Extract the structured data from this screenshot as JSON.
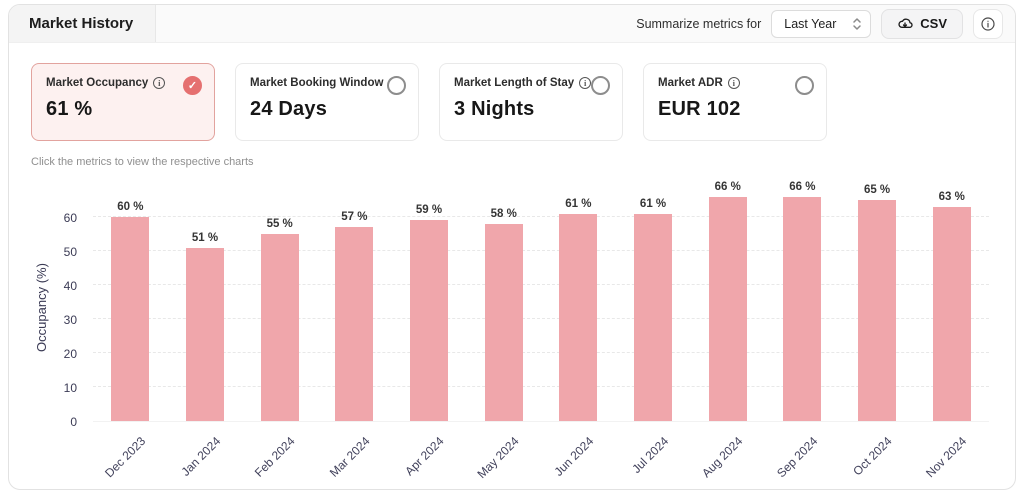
{
  "header": {
    "title": "Market History",
    "summarize_label": "Summarize metrics for",
    "period_select": {
      "value": "Last Year"
    },
    "csv_button_label": "CSV"
  },
  "metrics": [
    {
      "label": "Market Occupancy",
      "value": "61 %",
      "selected": true
    },
    {
      "label": "Market Booking Window",
      "value": "24 Days",
      "selected": false
    },
    {
      "label": "Market Length of Stay",
      "value": "3 Nights",
      "selected": false
    },
    {
      "label": "Market ADR",
      "value": "EUR 102",
      "selected": false
    }
  ],
  "hint": "Click the metrics to view the respective charts",
  "icons": {
    "info": "i",
    "check": "✓"
  },
  "colors": {
    "bar": "#f0a6ab",
    "accent": "#e57070",
    "selected_card_bg": "#fdf1f0",
    "selected_card_border": "#e2a39e",
    "axis_text": "#3b3b55"
  },
  "chart_data": {
    "type": "bar",
    "title": "",
    "xlabel": "",
    "ylabel": "Occupancy (%)",
    "categories": [
      "Dec 2023",
      "Jan 2024",
      "Feb 2024",
      "Mar 2024",
      "Apr 2024",
      "May 2024",
      "Jun 2024",
      "Jul 2024",
      "Aug 2024",
      "Sep 2024",
      "Oct 2024",
      "Nov 2024"
    ],
    "values": [
      60,
      51,
      55,
      57,
      59,
      58,
      61,
      61,
      66,
      66,
      65,
      63
    ],
    "value_suffix": " %",
    "ylim": [
      0,
      70
    ],
    "yticks": [
      0,
      10,
      20,
      30,
      40,
      50,
      60
    ],
    "grid": "horizontal-dashed",
    "legend": "none",
    "bar_color": "#f0a6ab"
  }
}
